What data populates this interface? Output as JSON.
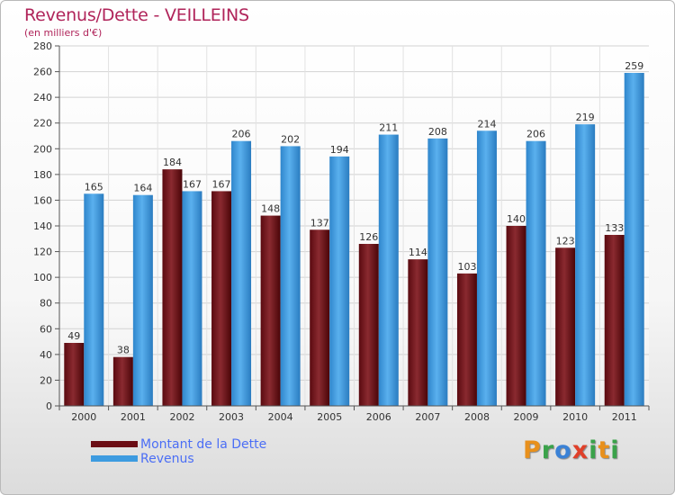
{
  "title": "Revenus/Dette - VEILLEINS",
  "subtitle": "(en milliers d'€)",
  "logo": {
    "text": "Proxiti",
    "letters": [
      "P",
      "r",
      "o",
      "x",
      "i",
      "t",
      "i"
    ],
    "colors": [
      "#e8901c",
      "#3aa24a",
      "#3b82d6",
      "#e0402a",
      "#3aa24a",
      "#e8901c",
      "#3aa24a"
    ]
  },
  "legend": [
    {
      "label": "Montant de la Dette",
      "color": "#6b0d14"
    },
    {
      "label": "Revenus",
      "color": "#3d9be0"
    }
  ],
  "chart_data": {
    "type": "bar",
    "title": "Revenus/Dette - VEILLEINS",
    "ylabel": "(en milliers d'€)",
    "categories": [
      "2000",
      "2001",
      "2002",
      "2003",
      "2004",
      "2005",
      "2006",
      "2007",
      "2008",
      "2009",
      "2010",
      "2011"
    ],
    "series": [
      {
        "name": "Montant de la Dette",
        "color": "#7a1a22",
        "values": [
          49,
          38,
          184,
          167,
          148,
          137,
          126,
          114,
          103,
          140,
          123,
          133
        ]
      },
      {
        "name": "Revenus",
        "color": "#3d9be0",
        "values": [
          165,
          164,
          167,
          206,
          202,
          194,
          211,
          208,
          214,
          206,
          219,
          259
        ]
      }
    ],
    "ylim": [
      0,
      280
    ],
    "yticks": [
      0,
      20,
      40,
      60,
      80,
      100,
      120,
      140,
      160,
      180,
      200,
      220,
      240,
      260,
      280
    ],
    "grid": true,
    "legend_position": "bottom-left"
  }
}
